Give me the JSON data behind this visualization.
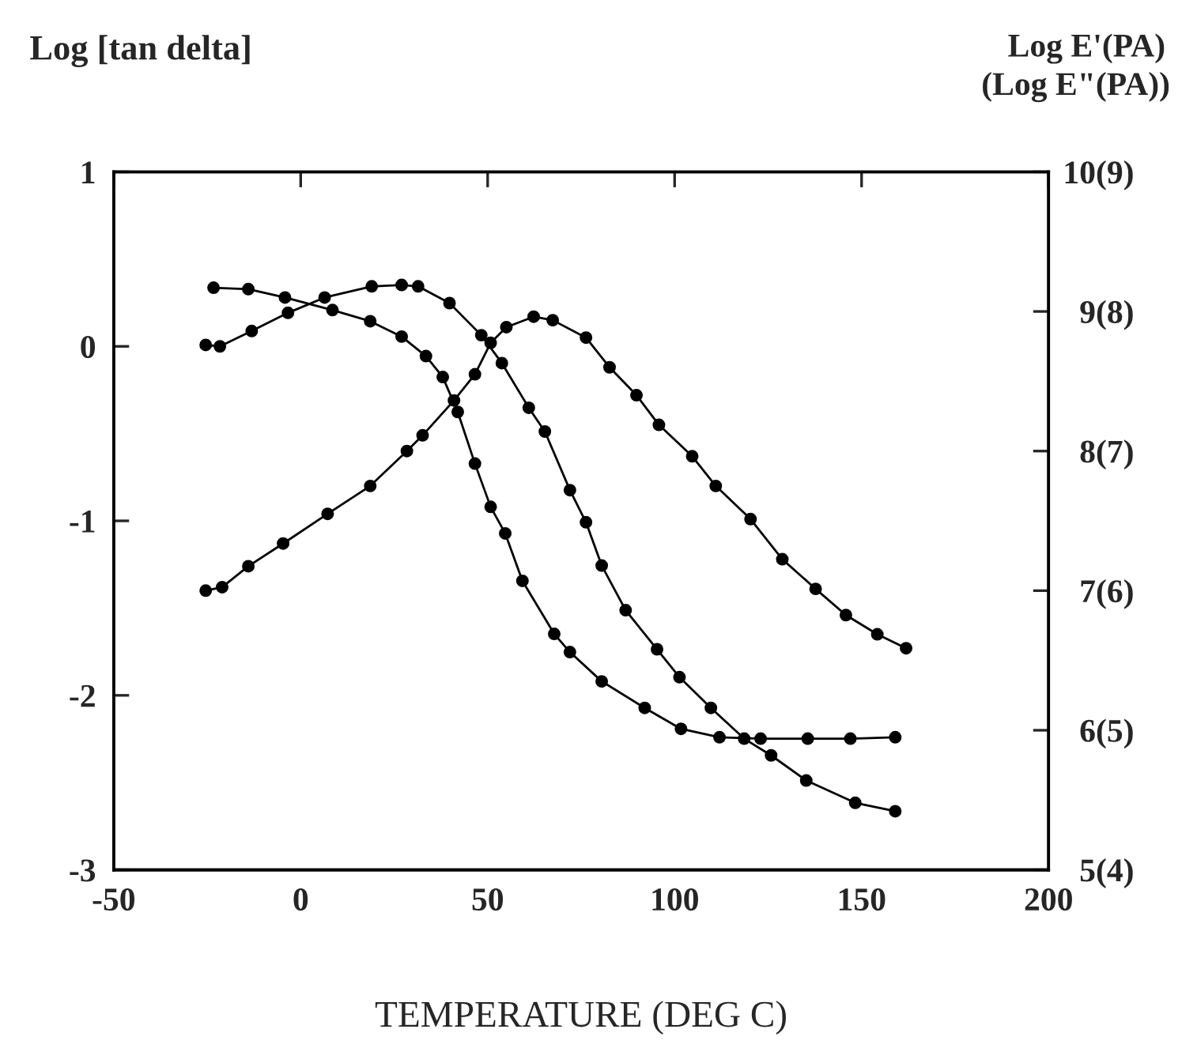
{
  "chart_data": {
    "type": "line",
    "xlabel": "TEMPERATURE (DEG C)",
    "ylabel": "Log [tan delta]",
    "y2label": "Log E'(PA)",
    "y3label": "(Log E\"(PA))",
    "xlim": [
      -50,
      200
    ],
    "xticks": [
      -50,
      0,
      50,
      100,
      150,
      200
    ],
    "ylim": [
      -3,
      1
    ],
    "yticks": [
      -3,
      -2,
      -1,
      0,
      1
    ],
    "y2lim": [
      5,
      10
    ],
    "y2ticks": [
      5,
      6,
      7,
      8,
      9,
      10
    ],
    "y3lim": [
      4,
      9
    ],
    "y3ticks": [
      {
        "value": 4,
        "label": "(4)"
      },
      {
        "value": 5,
        "label": "(5)"
      },
      {
        "value": 6,
        "label": "(6)"
      },
      {
        "value": 7,
        "label": "(7)"
      },
      {
        "value": 8,
        "label": "(8)"
      },
      {
        "value": 9,
        "label": "(9)"
      }
    ],
    "grid": false,
    "legend": false,
    "marker": "circle",
    "line_style": "solid",
    "series": [
      {
        "color": "#000000",
        "axis": "y2",
        "x": [
          -23.3,
          -14,
          -4.2,
          8.5,
          18.6,
          27,
          33.5,
          38,
          42,
          46.6,
          50.8,
          54.7,
          59.3,
          67.8,
          72,
          80.5,
          92,
          101.7,
          112,
          123,
          135.6,
          147,
          159
        ],
        "values": [
          9.17,
          9.16,
          9.1,
          9.01,
          8.93,
          8.82,
          8.68,
          8.53,
          8.28,
          7.91,
          7.6,
          7.41,
          7.07,
          6.69,
          6.56,
          6.35,
          6.16,
          6.01,
          5.95,
          5.94,
          5.94,
          5.94,
          5.95
        ]
      },
      {
        "color": "#000000",
        "axis": "y3",
        "x": [
          -25.4,
          -21.6,
          -13.1,
          -3.4,
          6.4,
          19,
          27,
          31.4,
          39.8,
          48.3,
          53.8,
          61,
          65.3,
          72,
          76.3,
          80.5,
          86.9,
          95.3,
          101.3,
          109.7,
          118.6,
          125.8,
          135.2,
          148.3,
          159
        ],
        "values": [
          7.76,
          7.75,
          7.86,
          7.99,
          8.1,
          8.18,
          8.19,
          8.18,
          8.06,
          7.83,
          7.63,
          7.31,
          7.14,
          6.72,
          6.49,
          6.18,
          5.86,
          5.58,
          5.38,
          5.16,
          4.94,
          4.82,
          4.64,
          4.48,
          4.42
        ]
      },
      {
        "color": "#000000",
        "x": [
          -25.4,
          -21,
          -14,
          -4.7,
          7.2,
          18.6,
          28.4,
          32.6,
          41,
          46.6,
          50.8,
          55,
          62.3,
          67.4,
          76.3,
          82.6,
          89.8,
          95.8,
          104.7,
          111,
          120.3,
          128.8,
          137.7,
          145.8,
          154.2,
          161.9
        ],
        "values": [
          -1.4,
          -1.38,
          -1.26,
          -1.13,
          -0.96,
          -0.8,
          -0.6,
          -0.51,
          -0.31,
          -0.16,
          0.02,
          0.11,
          0.17,
          0.15,
          0.05,
          -0.12,
          -0.28,
          -0.45,
          -0.63,
          -0.8,
          -0.99,
          -1.22,
          -1.39,
          -1.54,
          -1.65,
          -1.73
        ]
      }
    ]
  }
}
